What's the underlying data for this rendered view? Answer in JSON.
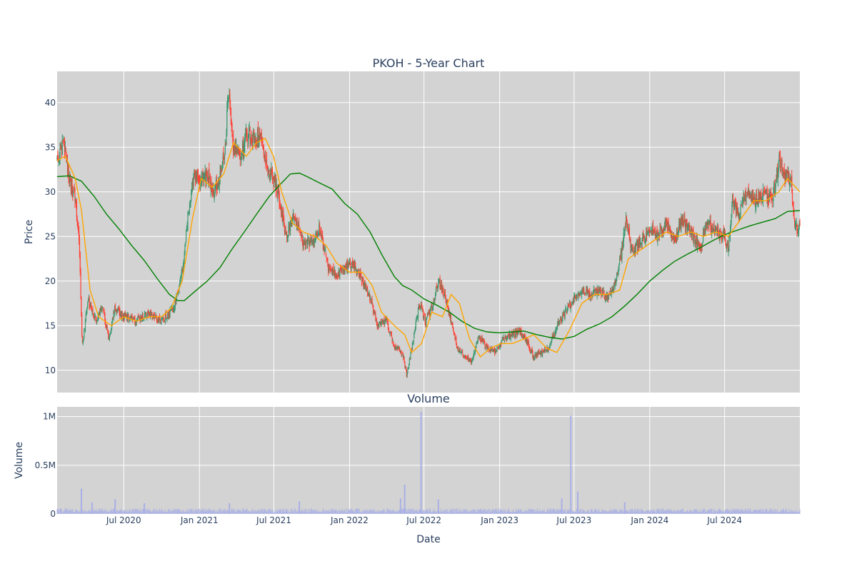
{
  "chart_data": {
    "type": "candlestick",
    "title": "PKOH - 5-Year Chart",
    "subplot_title": "Volume",
    "xlabel": "Date",
    "price_ylabel": "Price",
    "volume_ylabel": "Volume",
    "price_ylim": [
      7.5,
      43.5
    ],
    "price_yticks": [
      10,
      15,
      20,
      25,
      30,
      35,
      40
    ],
    "volume_ylim": [
      0,
      1100000
    ],
    "volume_yticks": [
      {
        "value": 0,
        "label": "0"
      },
      {
        "value": 500000,
        "label": "0.5M"
      },
      {
        "value": 1000000,
        "label": "1M"
      }
    ],
    "x_range": [
      "2020-01-21",
      "2024-12-31"
    ],
    "x_ticks": [
      {
        "date": "2020-07-01",
        "label": "Jul 2020"
      },
      {
        "date": "2021-01-01",
        "label": "Jan 2021"
      },
      {
        "date": "2021-07-01",
        "label": "Jul 2021"
      },
      {
        "date": "2022-01-01",
        "label": "Jan 2022"
      },
      {
        "date": "2022-07-01",
        "label": "Jul 2022"
      },
      {
        "date": "2023-01-01",
        "label": "Jan 2023"
      },
      {
        "date": "2023-07-01",
        "label": "Jul 2023"
      },
      {
        "date": "2024-01-01",
        "label": "Jan 2024"
      },
      {
        "date": "2024-07-01",
        "label": "Jul 2024"
      }
    ],
    "grid": true,
    "colors": {
      "increasing": "#3d9970",
      "decreasing": "#ff4136",
      "ma_short": "#ffa500",
      "ma_long": "#008000",
      "volume": "#aab0e6",
      "plot_bg": "#d3d3d3",
      "grid": "#ffffff",
      "text": "#2a3f5f"
    },
    "close_trend": [
      [
        "2020-01-21",
        33.5
      ],
      [
        "2020-02-05",
        35.5
      ],
      [
        "2020-02-20",
        31.5
      ],
      [
        "2020-03-05",
        29.5
      ],
      [
        "2020-03-15",
        24.0
      ],
      [
        "2020-03-22",
        12.5
      ],
      [
        "2020-04-05",
        18.0
      ],
      [
        "2020-04-25",
        15.5
      ],
      [
        "2020-05-10",
        17.0
      ],
      [
        "2020-05-25",
        13.5
      ],
      [
        "2020-06-10",
        17.0
      ],
      [
        "2020-07-01",
        16.0
      ],
      [
        "2020-08-01",
        15.5
      ],
      [
        "2020-09-01",
        16.5
      ],
      [
        "2020-10-01",
        15.5
      ],
      [
        "2020-11-01",
        17.0
      ],
      [
        "2020-11-20",
        21.0
      ],
      [
        "2020-12-05",
        27.5
      ],
      [
        "2020-12-20",
        32.0
      ],
      [
        "2021-01-01",
        31.0
      ],
      [
        "2021-01-20",
        32.0
      ],
      [
        "2021-02-05",
        30.0
      ],
      [
        "2021-02-20",
        31.5
      ],
      [
        "2021-03-05",
        35.0
      ],
      [
        "2021-03-12",
        41.0
      ],
      [
        "2021-03-25",
        35.0
      ],
      [
        "2021-04-10",
        33.5
      ],
      [
        "2021-04-25",
        36.5
      ],
      [
        "2021-05-10",
        36.0
      ],
      [
        "2021-06-01",
        36.5
      ],
      [
        "2021-06-15",
        32.5
      ],
      [
        "2021-07-01",
        31.5
      ],
      [
        "2021-07-15",
        29.0
      ],
      [
        "2021-08-01",
        25.0
      ],
      [
        "2021-08-20",
        27.5
      ],
      [
        "2021-09-10",
        24.0
      ],
      [
        "2021-10-01",
        24.5
      ],
      [
        "2021-10-20",
        26.0
      ],
      [
        "2021-11-10",
        21.5
      ],
      [
        "2021-12-01",
        20.5
      ],
      [
        "2021-12-20",
        21.5
      ],
      [
        "2022-01-10",
        22.0
      ],
      [
        "2022-02-01",
        20.0
      ],
      [
        "2022-02-20",
        18.0
      ],
      [
        "2022-03-10",
        15.0
      ],
      [
        "2022-04-01",
        15.5
      ],
      [
        "2022-04-20",
        12.5
      ],
      [
        "2022-05-10",
        12.0
      ],
      [
        "2022-05-20",
        9.5
      ],
      [
        "2022-06-05",
        13.5
      ],
      [
        "2022-06-20",
        17.5
      ],
      [
        "2022-07-05",
        15.5
      ],
      [
        "2022-07-20",
        17.0
      ],
      [
        "2022-08-05",
        20.0
      ],
      [
        "2022-08-20",
        18.5
      ],
      [
        "2022-09-05",
        15.5
      ],
      [
        "2022-09-20",
        12.5
      ],
      [
        "2022-10-10",
        11.5
      ],
      [
        "2022-10-25",
        11.0
      ],
      [
        "2022-11-10",
        14.0
      ],
      [
        "2022-12-01",
        12.5
      ],
      [
        "2022-12-20",
        12.0
      ],
      [
        "2023-01-10",
        13.5
      ],
      [
        "2023-02-01",
        14.0
      ],
      [
        "2023-02-20",
        14.5
      ],
      [
        "2023-03-10",
        13.0
      ],
      [
        "2023-03-25",
        11.5
      ],
      [
        "2023-04-10",
        12.0
      ],
      [
        "2023-05-01",
        12.5
      ],
      [
        "2023-05-20",
        15.0
      ],
      [
        "2023-06-10",
        16.5
      ],
      [
        "2023-07-01",
        18.0
      ],
      [
        "2023-07-20",
        19.0
      ],
      [
        "2023-08-10",
        18.5
      ],
      [
        "2023-09-01",
        19.0
      ],
      [
        "2023-09-20",
        18.0
      ],
      [
        "2023-10-10",
        20.0
      ],
      [
        "2023-10-25",
        23.5
      ],
      [
        "2023-11-05",
        27.0
      ],
      [
        "2023-11-20",
        23.0
      ],
      [
        "2023-12-10",
        24.5
      ],
      [
        "2024-01-01",
        26.0
      ],
      [
        "2024-01-20",
        25.0
      ],
      [
        "2024-02-10",
        26.5
      ],
      [
        "2024-03-01",
        24.5
      ],
      [
        "2024-03-20",
        27.0
      ],
      [
        "2024-04-10",
        25.5
      ],
      [
        "2024-05-01",
        23.5
      ],
      [
        "2024-05-20",
        26.5
      ],
      [
        "2024-06-10",
        25.5
      ],
      [
        "2024-07-01",
        25.0
      ],
      [
        "2024-07-10",
        23.5
      ],
      [
        "2024-07-20",
        29.0
      ],
      [
        "2024-08-05",
        27.5
      ],
      [
        "2024-08-25",
        30.0
      ],
      [
        "2024-09-15",
        29.0
      ],
      [
        "2024-10-05",
        30.0
      ],
      [
        "2024-10-25",
        29.0
      ],
      [
        "2024-11-10",
        33.5
      ],
      [
        "2024-11-25",
        32.0
      ],
      [
        "2024-12-10",
        31.5
      ],
      [
        "2024-12-18",
        26.0
      ],
      [
        "2024-12-31",
        26.0
      ]
    ],
    "ma_short_points": [
      [
        "2020-01-21",
        33.5
      ],
      [
        "2020-02-10",
        34.0
      ],
      [
        "2020-03-05",
        31.5
      ],
      [
        "2020-03-20",
        28.0
      ],
      [
        "2020-04-10",
        19.0
      ],
      [
        "2020-05-01",
        16.0
      ],
      [
        "2020-06-01",
        15.0
      ],
      [
        "2020-07-01",
        16.0
      ],
      [
        "2020-08-01",
        15.5
      ],
      [
        "2020-09-01",
        16.0
      ],
      [
        "2020-10-01",
        16.0
      ],
      [
        "2020-10-25",
        17.0
      ],
      [
        "2020-11-20",
        20.0
      ],
      [
        "2020-12-15",
        27.0
      ],
      [
        "2021-01-05",
        31.5
      ],
      [
        "2021-02-01",
        30.5
      ],
      [
        "2021-03-01",
        32.0
      ],
      [
        "2021-03-25",
        35.5
      ],
      [
        "2021-04-25",
        34.0
      ],
      [
        "2021-05-20",
        35.5
      ],
      [
        "2021-06-10",
        36.0
      ],
      [
        "2021-06-30",
        34.0
      ],
      [
        "2021-07-20",
        30.0
      ],
      [
        "2021-08-15",
        26.5
      ],
      [
        "2021-09-10",
        25.5
      ],
      [
        "2021-10-10",
        25.0
      ],
      [
        "2021-11-05",
        24.0
      ],
      [
        "2021-12-01",
        22.0
      ],
      [
        "2022-01-01",
        21.0
      ],
      [
        "2022-02-01",
        21.0
      ],
      [
        "2022-02-25",
        19.5
      ],
      [
        "2022-03-20",
        16.5
      ],
      [
        "2022-04-20",
        15.0
      ],
      [
        "2022-05-15",
        14.0
      ],
      [
        "2022-06-01",
        12.0
      ],
      [
        "2022-06-25",
        13.0
      ],
      [
        "2022-07-20",
        16.5
      ],
      [
        "2022-08-15",
        16.0
      ],
      [
        "2022-09-05",
        18.5
      ],
      [
        "2022-09-25",
        17.5
      ],
      [
        "2022-10-20",
        13.5
      ],
      [
        "2022-11-15",
        11.5
      ],
      [
        "2022-12-10",
        12.5
      ],
      [
        "2023-01-05",
        13.0
      ],
      [
        "2023-02-01",
        13.0
      ],
      [
        "2023-03-01",
        13.5
      ],
      [
        "2023-03-25",
        14.0
      ],
      [
        "2023-04-25",
        12.5
      ],
      [
        "2023-05-20",
        12.0
      ],
      [
        "2023-06-20",
        14.5
      ],
      [
        "2023-07-20",
        17.5
      ],
      [
        "2023-08-20",
        18.5
      ],
      [
        "2023-09-20",
        18.5
      ],
      [
        "2023-10-20",
        19.0
      ],
      [
        "2023-11-10",
        22.5
      ],
      [
        "2023-12-10",
        23.5
      ],
      [
        "2024-01-10",
        24.5
      ],
      [
        "2024-02-10",
        25.5
      ],
      [
        "2024-03-10",
        25.0
      ],
      [
        "2024-04-10",
        25.5
      ],
      [
        "2024-05-10",
        25.0
      ],
      [
        "2024-06-10",
        25.5
      ],
      [
        "2024-07-10",
        25.0
      ],
      [
        "2024-08-10",
        27.0
      ],
      [
        "2024-09-10",
        29.0
      ],
      [
        "2024-10-10",
        29.0
      ],
      [
        "2024-11-10",
        30.0
      ],
      [
        "2024-12-01",
        31.5
      ],
      [
        "2024-12-31",
        30.0
      ]
    ],
    "ma_long_points": [
      [
        "2020-01-21",
        31.7
      ],
      [
        "2020-02-20",
        31.8
      ],
      [
        "2020-03-20",
        31.2
      ],
      [
        "2020-04-20",
        29.5
      ],
      [
        "2020-05-20",
        27.5
      ],
      [
        "2020-06-20",
        25.8
      ],
      [
        "2020-07-20",
        24.0
      ],
      [
        "2020-08-20",
        22.3
      ],
      [
        "2020-09-20",
        20.3
      ],
      [
        "2020-10-20",
        18.5
      ],
      [
        "2020-11-10",
        17.8
      ],
      [
        "2020-11-25",
        17.8
      ],
      [
        "2020-12-20",
        18.8
      ],
      [
        "2021-01-20",
        20.0
      ],
      [
        "2021-02-20",
        21.5
      ],
      [
        "2021-03-20",
        23.5
      ],
      [
        "2021-04-20",
        25.5
      ],
      [
        "2021-05-20",
        27.5
      ],
      [
        "2021-06-20",
        29.5
      ],
      [
        "2021-07-20",
        31.0
      ],
      [
        "2021-08-10",
        32.0
      ],
      [
        "2021-09-01",
        32.1
      ],
      [
        "2021-09-20",
        31.7
      ],
      [
        "2021-10-20",
        31.0
      ],
      [
        "2021-11-20",
        30.3
      ],
      [
        "2021-12-20",
        28.7
      ],
      [
        "2022-01-20",
        27.5
      ],
      [
        "2022-02-20",
        25.5
      ],
      [
        "2022-03-20",
        23.0
      ],
      [
        "2022-04-20",
        20.5
      ],
      [
        "2022-05-10",
        19.5
      ],
      [
        "2022-06-01",
        19.0
      ],
      [
        "2022-07-01",
        18.0
      ],
      [
        "2022-08-01",
        17.3
      ],
      [
        "2022-09-01",
        16.5
      ],
      [
        "2022-10-01",
        15.5
      ],
      [
        "2022-11-01",
        14.7
      ],
      [
        "2022-12-01",
        14.3
      ],
      [
        "2023-01-01",
        14.2
      ],
      [
        "2023-02-01",
        14.3
      ],
      [
        "2023-03-01",
        14.4
      ],
      [
        "2023-04-01",
        14.0
      ],
      [
        "2023-05-01",
        13.7
      ],
      [
        "2023-06-01",
        13.5
      ],
      [
        "2023-07-01",
        13.8
      ],
      [
        "2023-08-01",
        14.6
      ],
      [
        "2023-09-01",
        15.2
      ],
      [
        "2023-10-01",
        16.0
      ],
      [
        "2023-11-01",
        17.2
      ],
      [
        "2023-12-01",
        18.5
      ],
      [
        "2024-01-01",
        20.0
      ],
      [
        "2024-02-01",
        21.2
      ],
      [
        "2024-03-01",
        22.2
      ],
      [
        "2024-04-01",
        23.0
      ],
      [
        "2024-05-01",
        23.7
      ],
      [
        "2024-06-01",
        24.5
      ],
      [
        "2024-07-01",
        25.2
      ],
      [
        "2024-08-01",
        25.7
      ],
      [
        "2024-09-01",
        26.2
      ],
      [
        "2024-10-01",
        26.6
      ],
      [
        "2024-11-01",
        27.0
      ],
      [
        "2024-12-01",
        27.8
      ],
      [
        "2024-12-31",
        27.9
      ]
    ],
    "volume_spikes": [
      [
        "2020-03-20",
        260000
      ],
      [
        "2020-04-15",
        120000
      ],
      [
        "2020-06-10",
        150000
      ],
      [
        "2020-08-20",
        110000
      ],
      [
        "2021-03-15",
        110000
      ],
      [
        "2021-09-01",
        130000
      ],
      [
        "2022-05-05",
        160000
      ],
      [
        "2022-05-15",
        300000
      ],
      [
        "2022-06-24",
        1050000
      ],
      [
        "2022-08-05",
        150000
      ],
      [
        "2023-06-01",
        160000
      ],
      [
        "2023-06-23",
        1010000
      ],
      [
        "2023-07-10",
        230000
      ],
      [
        "2023-11-01",
        120000
      ]
    ]
  }
}
